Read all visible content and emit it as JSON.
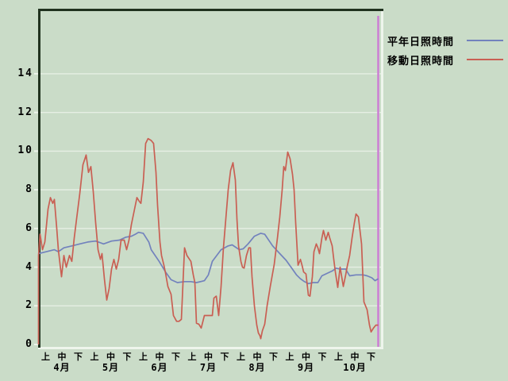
{
  "legend": {
    "series_normal_label": "平年日照時間",
    "series_moving_label": "移動日照時間"
  },
  "colors": {
    "background": "#cadcc8",
    "frame_dark": "#20321f",
    "edge_light": "#eef5ec",
    "gridline": "#e6efe4",
    "series_normal": "#7282bd",
    "series_moving": "#c95f53",
    "marker_line": "#cc7ed4",
    "text": "#000000"
  },
  "chart_data": {
    "type": "line",
    "title": "",
    "xlabel": "",
    "ylabel": "",
    "ylim": [
      0,
      15.6
    ],
    "yticks": [
      0,
      2,
      4,
      6,
      8,
      10,
      12,
      14
    ],
    "grid": "horizontal white lines at even values",
    "legend_position": "top-right outside plot",
    "x_axis": {
      "months": [
        "4月",
        "5月",
        "6月",
        "7月",
        "8月",
        "9月",
        "10月"
      ],
      "decade_labels": [
        "上",
        "中",
        "下"
      ],
      "x_unit": "days from April 1 (0 - 214)"
    },
    "marker_line": {
      "position_day": 214,
      "color": "#cc7ed4",
      "note": "vertical magenta line at right end of data"
    },
    "series": [
      {
        "name": "平年日照時間",
        "color": "#7282bd",
        "points": [
          [
            0,
            4.7
          ],
          [
            5,
            4.8
          ],
          [
            10,
            4.9
          ],
          [
            12.5,
            4.8
          ],
          [
            16,
            5.0
          ],
          [
            21,
            5.1
          ],
          [
            26,
            5.2
          ],
          [
            31,
            5.3
          ],
          [
            36,
            5.35
          ],
          [
            41,
            5.2
          ],
          [
            46,
            5.35
          ],
          [
            51,
            5.4
          ],
          [
            55,
            5.55
          ],
          [
            58.5,
            5.6
          ],
          [
            61,
            5.7
          ],
          [
            63,
            5.8
          ],
          [
            66,
            5.75
          ],
          [
            69.5,
            5.3
          ],
          [
            71,
            4.9
          ],
          [
            76,
            4.3
          ],
          [
            80,
            3.75
          ],
          [
            83.5,
            3.35
          ],
          [
            87.5,
            3.2
          ],
          [
            92,
            3.25
          ],
          [
            96,
            3.25
          ],
          [
            99.5,
            3.2
          ],
          [
            104.5,
            3.3
          ],
          [
            107,
            3.6
          ],
          [
            109.5,
            4.3
          ],
          [
            115,
            4.9
          ],
          [
            119.5,
            5.1
          ],
          [
            122,
            5.15
          ],
          [
            126.5,
            4.9
          ],
          [
            129,
            4.95
          ],
          [
            132,
            5.2
          ],
          [
            136,
            5.6
          ],
          [
            140,
            5.75
          ],
          [
            142.5,
            5.7
          ],
          [
            147.5,
            5.1
          ],
          [
            152,
            4.7
          ],
          [
            156,
            4.35
          ],
          [
            159.5,
            3.95
          ],
          [
            162.5,
            3.6
          ],
          [
            165,
            3.4
          ],
          [
            167.5,
            3.25
          ],
          [
            170,
            3.15
          ],
          [
            173,
            3.2
          ],
          [
            176,
            3.2
          ],
          [
            178.5,
            3.55
          ],
          [
            181,
            3.65
          ],
          [
            185,
            3.8
          ],
          [
            187.5,
            3.95
          ],
          [
            190,
            3.9
          ],
          [
            193.5,
            3.9
          ],
          [
            196,
            3.55
          ],
          [
            200,
            3.6
          ],
          [
            204.5,
            3.6
          ],
          [
            207,
            3.55
          ],
          [
            210,
            3.45
          ],
          [
            212,
            3.3
          ],
          [
            214,
            3.4
          ]
        ]
      },
      {
        "name": "移動日照時間",
        "color": "#c95f53",
        "points": [
          [
            0,
            0
          ],
          [
            0,
            4.6
          ],
          [
            1,
            5.7
          ],
          [
            2.5,
            4.9
          ],
          [
            4,
            5.3
          ],
          [
            6,
            7.0
          ],
          [
            7.5,
            7.6
          ],
          [
            9,
            7.3
          ],
          [
            10,
            7.5
          ],
          [
            11.5,
            6.0
          ],
          [
            12.5,
            4.9
          ],
          [
            14.5,
            3.5
          ],
          [
            16,
            4.6
          ],
          [
            17.5,
            4.0
          ],
          [
            19.5,
            4.6
          ],
          [
            21,
            4.3
          ],
          [
            22.5,
            5.5
          ],
          [
            24,
            6.5
          ],
          [
            26,
            7.8
          ],
          [
            28,
            9.3
          ],
          [
            30,
            9.8
          ],
          [
            31.5,
            8.9
          ],
          [
            33,
            9.2
          ],
          [
            34.5,
            7.9
          ],
          [
            36,
            6.3
          ],
          [
            37.5,
            4.9
          ],
          [
            39,
            4.4
          ],
          [
            40,
            4.7
          ],
          [
            41.5,
            3.4
          ],
          [
            43,
            2.3
          ],
          [
            44.5,
            2.9
          ],
          [
            46,
            3.9
          ],
          [
            47.5,
            4.4
          ],
          [
            49,
            3.9
          ],
          [
            50.5,
            4.4
          ],
          [
            52,
            5.4
          ],
          [
            54,
            5.4
          ],
          [
            55.5,
            4.9
          ],
          [
            57,
            5.4
          ],
          [
            58.5,
            6.2
          ],
          [
            60.5,
            7.0
          ],
          [
            62,
            7.6
          ],
          [
            63.5,
            7.4
          ],
          [
            64.5,
            7.3
          ],
          [
            66,
            8.4
          ],
          [
            67.5,
            10.4
          ],
          [
            69,
            10.65
          ],
          [
            71,
            10.55
          ],
          [
            72.5,
            10.4
          ],
          [
            74,
            8.9
          ],
          [
            75,
            7.2
          ],
          [
            76.5,
            5.3
          ],
          [
            77.5,
            4.6
          ],
          [
            79,
            4.1
          ],
          [
            80,
            3.7
          ],
          [
            81.5,
            3.0
          ],
          [
            83.5,
            2.6
          ],
          [
            85,
            1.5
          ],
          [
            87,
            1.2
          ],
          [
            88.5,
            1.2
          ],
          [
            90,
            1.3
          ],
          [
            92,
            5.0
          ],
          [
            93.5,
            4.6
          ],
          [
            96,
            4.3
          ],
          [
            97.5,
            3.6
          ],
          [
            98.5,
            3.2
          ],
          [
            99.5,
            1.1
          ],
          [
            101,
            1.05
          ],
          [
            102.5,
            0.85
          ],
          [
            104.5,
            1.5
          ],
          [
            107,
            1.5
          ],
          [
            109.5,
            1.5
          ],
          [
            110.5,
            2.4
          ],
          [
            112,
            2.5
          ],
          [
            113.5,
            1.5
          ],
          [
            115,
            3.0
          ],
          [
            116.5,
            5.0
          ],
          [
            118,
            6.5
          ],
          [
            119.5,
            8.0
          ],
          [
            121,
            9.0
          ],
          [
            122.5,
            9.4
          ],
          [
            124,
            8.5
          ],
          [
            125,
            6.5
          ],
          [
            126,
            5.1
          ],
          [
            127.5,
            4.3
          ],
          [
            128.5,
            4.0
          ],
          [
            129.5,
            3.95
          ],
          [
            131,
            4.6
          ],
          [
            132.5,
            5.0
          ],
          [
            133.5,
            5.0
          ],
          [
            134.5,
            3.5
          ],
          [
            136,
            2.0
          ],
          [
            137.5,
            1.0
          ],
          [
            138.5,
            0.6
          ],
          [
            139.5,
            0.45
          ],
          [
            140,
            0.3
          ],
          [
            141,
            0.7
          ],
          [
            142.5,
            1.05
          ],
          [
            144,
            2.0
          ],
          [
            146,
            3.0
          ],
          [
            148.5,
            4.15
          ],
          [
            150.5,
            5.5
          ],
          [
            152,
            6.6
          ],
          [
            153.5,
            8.0
          ],
          [
            154.5,
            9.2
          ],
          [
            155.5,
            9.0
          ],
          [
            157,
            9.95
          ],
          [
            158.5,
            9.6
          ],
          [
            160,
            8.8
          ],
          [
            161,
            8.0
          ],
          [
            162,
            6.3
          ],
          [
            163.5,
            4.1
          ],
          [
            165,
            4.4
          ],
          [
            166,
            4.1
          ],
          [
            167,
            3.75
          ],
          [
            168.5,
            3.65
          ],
          [
            170,
            2.55
          ],
          [
            171,
            2.5
          ],
          [
            172.5,
            3.5
          ],
          [
            173.5,
            4.8
          ],
          [
            175,
            5.2
          ],
          [
            176,
            5.0
          ],
          [
            177,
            4.7
          ],
          [
            178.5,
            5.5
          ],
          [
            179.5,
            5.9
          ],
          [
            181,
            5.4
          ],
          [
            182.5,
            5.8
          ],
          [
            183.5,
            5.5
          ],
          [
            185,
            5.1
          ],
          [
            186,
            4.4
          ],
          [
            187,
            3.75
          ],
          [
            188.5,
            2.95
          ],
          [
            190,
            4.0
          ],
          [
            191,
            3.5
          ],
          [
            192,
            3.0
          ],
          [
            193.5,
            3.6
          ],
          [
            194.5,
            4.05
          ],
          [
            196,
            4.6
          ],
          [
            197.5,
            5.5
          ],
          [
            199,
            6.3
          ],
          [
            200,
            6.75
          ],
          [
            201.5,
            6.6
          ],
          [
            202.5,
            5.9
          ],
          [
            203.5,
            5.2
          ],
          [
            205,
            2.2
          ],
          [
            207,
            1.8
          ],
          [
            208.5,
            1.0
          ],
          [
            209.5,
            0.65
          ],
          [
            211,
            0.85
          ],
          [
            212.5,
            1.0
          ],
          [
            214,
            1.0
          ]
        ]
      }
    ]
  }
}
